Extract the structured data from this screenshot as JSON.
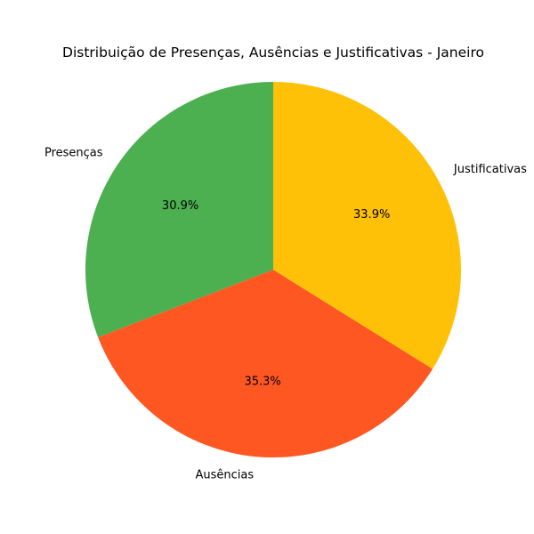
{
  "chart_data": {
    "type": "pie",
    "title": "Distribuição de Presenças, Ausências e Justificativas - Janeiro",
    "categories": [
      "Presenças",
      "Ausências",
      "Justificativas"
    ],
    "values": [
      30.9,
      35.3,
      33.9
    ],
    "value_labels": [
      "30.9%",
      "35.3%",
      "33.9%"
    ],
    "colors": [
      "#4caf50",
      "#ff5722",
      "#ffc107"
    ],
    "start_angle_deg": 90,
    "direction": "counterclockwise"
  }
}
